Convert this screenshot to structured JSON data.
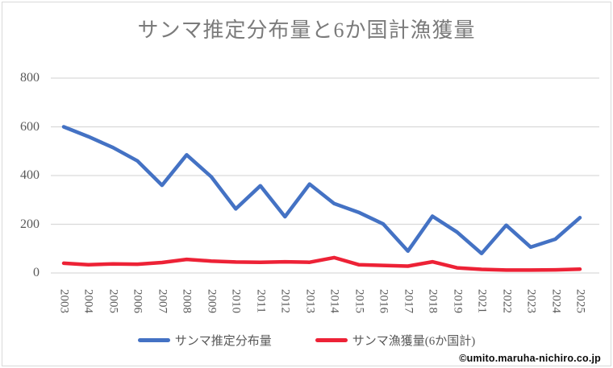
{
  "title": "サンマ推定分布量と6か国計漁獲量",
  "watermark": "©umito.maruha-nichiro.co.jp",
  "colors": {
    "gridline": "#d9d9d9",
    "axis_text": "#595959",
    "title_text": "#7b7b7b",
    "frame_border": "#d9d9d9",
    "background": "#ffffff"
  },
  "chart_data": {
    "type": "line",
    "title": "サンマ推定分布量と6か国計漁獲量",
    "xlabel": "",
    "ylabel": "",
    "ylim": [
      0,
      800
    ],
    "yticks": [
      0,
      200,
      400,
      600,
      800
    ],
    "grid": true,
    "legend_position": "bottom",
    "categories": [
      "2003",
      "2004",
      "2005",
      "2006",
      "2007",
      "2008",
      "2009",
      "2010",
      "2011",
      "2012",
      "2013",
      "2014",
      "2015",
      "2016",
      "2017",
      "2018",
      "2019",
      "2021",
      "2022",
      "2023",
      "2024",
      "2025"
    ],
    "series": [
      {
        "name": "サンマ推定分布量",
        "color": "#4472c4",
        "values": [
          600,
          560,
          515,
          460,
          360,
          485,
          395,
          263,
          358,
          231,
          365,
          285,
          249,
          201,
          90,
          233,
          168,
          80,
          196,
          106,
          139,
          227
        ]
      },
      {
        "name": "サンマ漁獲量(6か国計)",
        "color": "#ed2236",
        "values": [
          40,
          34,
          37,
          36,
          43,
          56,
          49,
          45,
          44,
          46,
          44,
          63,
          34,
          31,
          28,
          46,
          21,
          15,
          12,
          12,
          13,
          16
        ]
      }
    ]
  }
}
